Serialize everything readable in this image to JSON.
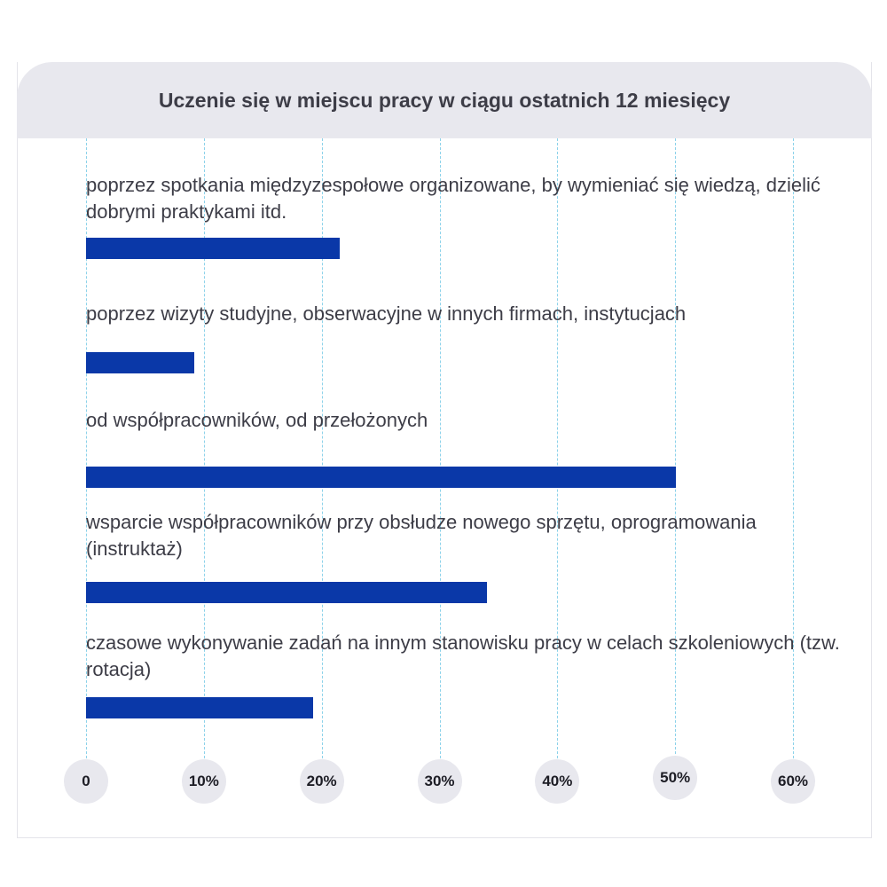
{
  "chart_data": {
    "type": "bar",
    "orientation": "horizontal",
    "title": "Uczenie się w miejscu pracy w ciągu ostatnich 12 miesięcy",
    "categories": [
      "poprzez spotkania międzyzespołowe organizowane, by wymieniać się wiedzą, dzielić dobrymi praktykami itd.",
      "poprzez wizyty studyjne, obserwacyjne w innych firmach, instytucjach",
      "od współpracowników, od przełożonych",
      "wsparcie współpracowników przy obsłudze nowego sprzętu, oprogramowania (instruktaż)",
      "czasowe wykonywanie zadań na innym stanowisku pracy w celach szkoleniowych (tzw. rotacja)"
    ],
    "values": [
      21.5,
      9.2,
      50.1,
      34.0,
      19.3
    ],
    "xlim": [
      0,
      60
    ],
    "tick_values": [
      0,
      10,
      20,
      30,
      40,
      50,
      60
    ],
    "tick_labels": [
      "0",
      "10%",
      "20%",
      "30%",
      "40%",
      "50%",
      "60%"
    ],
    "grid": true,
    "bar_color": "#0a38a8",
    "grid_color": "#8cd2ea"
  }
}
